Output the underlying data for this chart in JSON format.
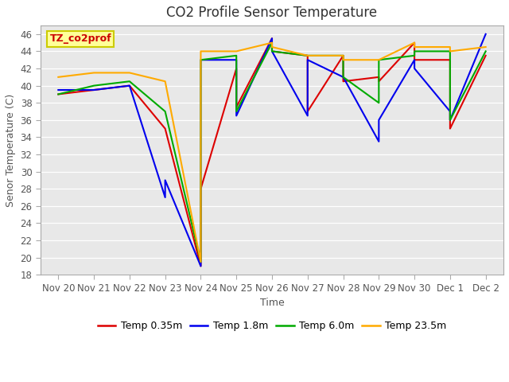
{
  "title": "CO2 Profile Sensor Temperature",
  "xlabel": "Time",
  "ylabel": "Senor Temperature (C)",
  "ylim": [
    18,
    47
  ],
  "background_color": "#ffffff",
  "plot_bg_color": "#e8e8e8",
  "annotation_text": "TZ_co2prof",
  "annotation_color": "#cc0000",
  "annotation_bg": "#ffff99",
  "annotation_border": "#cccc00",
  "xtick_labels": [
    "Nov 20",
    "Nov 21",
    "Nov 22",
    "Nov 23",
    "Nov 24",
    "Nov 25",
    "Nov 26",
    "Nov 27",
    "Nov 28",
    "Nov 29",
    "Nov 30",
    "Dec 1",
    "Dec 2"
  ],
  "xtick_positions": [
    0,
    1,
    2,
    3,
    4,
    5,
    6,
    7,
    8,
    9,
    10,
    11,
    12
  ],
  "ytick_positions": [
    18,
    20,
    22,
    24,
    26,
    28,
    30,
    32,
    34,
    36,
    38,
    40,
    42,
    44,
    46
  ],
  "series": [
    {
      "label": "Temp 0.35m",
      "color": "#dd0000",
      "linewidth": 1.5,
      "x": [
        0,
        1,
        2,
        3,
        4,
        4,
        5,
        5,
        6,
        6,
        7,
        7,
        8,
        8,
        9,
        9,
        10,
        10,
        11,
        11,
        12
      ],
      "y": [
        39,
        39.5,
        40,
        35,
        19,
        28,
        42,
        37.5,
        45.5,
        44,
        43.5,
        37,
        43.5,
        40.5,
        41,
        40.5,
        45,
        43,
        43,
        35,
        43.5
      ]
    },
    {
      "label": "Temp 1.8m",
      "color": "#0000ee",
      "linewidth": 1.5,
      "x": [
        0,
        1,
        2,
        3,
        3,
        4,
        4,
        5,
        5,
        6,
        6,
        7,
        7,
        8,
        8,
        9,
        9,
        10,
        10,
        11,
        11,
        12
      ],
      "y": [
        39.5,
        39.5,
        40,
        27,
        29,
        19,
        43,
        43,
        36.5,
        45.5,
        44,
        36.5,
        43,
        41,
        41,
        33.5,
        36,
        43,
        42,
        37,
        36,
        46
      ]
    },
    {
      "label": "Temp 6.0m",
      "color": "#00aa00",
      "linewidth": 1.5,
      "x": [
        0,
        1,
        2,
        3,
        4,
        4,
        5,
        5,
        6,
        6,
        7,
        7,
        8,
        8,
        9,
        9,
        10,
        10,
        11,
        11,
        12
      ],
      "y": [
        39,
        40,
        40.5,
        37,
        19.5,
        43,
        43.5,
        37,
        45,
        44,
        43.5,
        43.5,
        43.5,
        41,
        38,
        43,
        43.5,
        44,
        44,
        36,
        44
      ]
    },
    {
      "label": "Temp 23.5m",
      "color": "#ffaa00",
      "linewidth": 1.5,
      "x": [
        0,
        1,
        2,
        3,
        4,
        4,
        5,
        5,
        6,
        6,
        7,
        7,
        8,
        8,
        9,
        9,
        10,
        10,
        11,
        11,
        12
      ],
      "y": [
        41,
        41.5,
        41.5,
        40.5,
        19.5,
        44,
        44,
        44,
        45,
        44.5,
        43.5,
        43.5,
        43.5,
        43,
        43,
        43,
        45,
        44.5,
        44.5,
        44,
        44.5
      ]
    }
  ],
  "legend_entries": [
    "Temp 0.35m",
    "Temp 1.8m",
    "Temp 6.0m",
    "Temp 23.5m"
  ],
  "legend_colors": [
    "#dd0000",
    "#0000ee",
    "#00aa00",
    "#ffaa00"
  ]
}
